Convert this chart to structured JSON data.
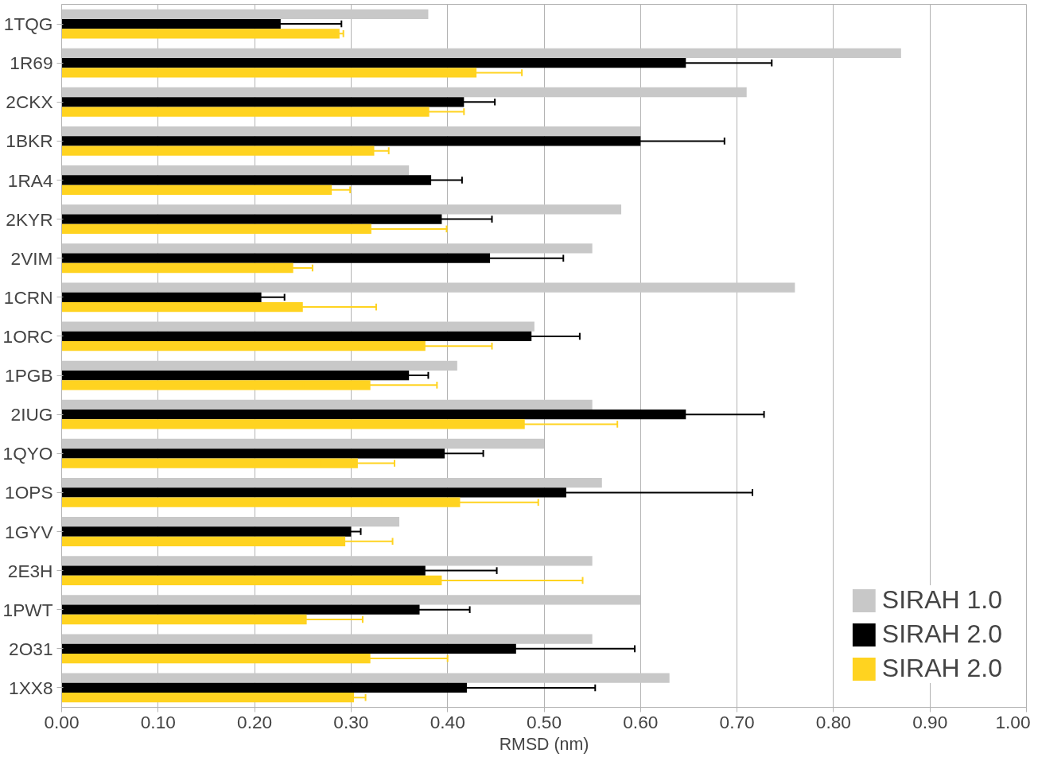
{
  "chart_data": {
    "type": "bar",
    "orientation": "horizontal",
    "xlabel": "RMSD (nm)",
    "categories": [
      "1TQG",
      "1R69",
      "2CKX",
      "1BKR",
      "1RA4",
      "2KYR",
      "2VIM",
      "1CRN",
      "1ORC",
      "1PGB",
      "2IUG",
      "1QYO",
      "1OPS",
      "1GYV",
      "2E3H",
      "1PWT",
      "2O31",
      "1XX8"
    ],
    "series": [
      {
        "name": "SIRAH 1.0",
        "color": "#c8c8c8",
        "values": [
          0.38,
          0.87,
          0.71,
          0.6,
          0.36,
          0.58,
          0.55,
          0.76,
          0.49,
          0.41,
          0.55,
          0.5,
          0.56,
          0.35,
          0.55,
          0.6,
          0.55,
          0.63
        ]
      },
      {
        "name": "SIRAH 2.0",
        "color": "#000000",
        "values": [
          0.227,
          0.647,
          0.417,
          0.6,
          0.383,
          0.394,
          0.444,
          0.207,
          0.487,
          0.36,
          0.647,
          0.397,
          0.523,
          0.3,
          0.377,
          0.371,
          0.471,
          0.42
        ],
        "errors": [
          0.063,
          0.089,
          0.032,
          0.087,
          0.032,
          0.052,
          0.076,
          0.024,
          0.05,
          0.02,
          0.081,
          0.04,
          0.193,
          0.01,
          0.074,
          0.052,
          0.123,
          0.133
        ]
      },
      {
        "name": "SIRAH 2.0",
        "color": "#ffd320",
        "values": [
          0.288,
          0.43,
          0.381,
          0.324,
          0.28,
          0.321,
          0.24,
          0.25,
          0.377,
          0.32,
          0.48,
          0.307,
          0.413,
          0.294,
          0.394,
          0.254,
          0.32,
          0.303
        ],
        "errors": [
          0.004,
          0.047,
          0.036,
          0.015,
          0.019,
          0.078,
          0.02,
          0.076,
          0.069,
          0.069,
          0.096,
          0.038,
          0.081,
          0.049,
          0.146,
          0.058,
          0.08,
          0.012
        ]
      }
    ],
    "xlim": [
      0,
      1
    ],
    "xticks": [
      {
        "value": 0,
        "label": "0.00"
      },
      {
        "value": 0.1,
        "label": "0.10"
      },
      {
        "value": 0.2,
        "label": "0.20"
      },
      {
        "value": 0.3,
        "label": "0.30"
      },
      {
        "value": 0.4,
        "label": "0.40"
      },
      {
        "value": 0.5,
        "label": "0.50"
      },
      {
        "value": 0.6,
        "label": "0.60"
      },
      {
        "value": 0.7,
        "label": "0.70"
      },
      {
        "value": 0.8,
        "label": "0.80"
      },
      {
        "value": 0.9,
        "label": "0.90"
      },
      {
        "value": 1,
        "label": "1.00"
      }
    ],
    "grid": "x",
    "legend": "bottom right"
  }
}
